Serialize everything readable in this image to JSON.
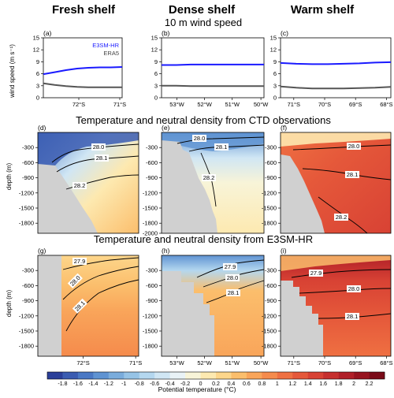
{
  "column_headers": [
    "Fresh shelf",
    "Dense shelf",
    "Warm shelf"
  ],
  "row_titles": [
    "10 m wind speed",
    "Temperature and neutral density from CTD observations",
    "Temperature and neutral density from E3SM-HR"
  ],
  "panel_labels": [
    "(a)",
    "(b)",
    "(c)",
    "(d)",
    "(e)",
    "(f)",
    "(g)",
    "(h)",
    "(i)"
  ],
  "ylabels": {
    "wind": "wind speed (m s⁻¹)",
    "depth": "depth (m)"
  },
  "colorbar": {
    "label": "Potential temperature (°C)",
    "ticks": [
      "-1.8",
      "-1.6",
      "-1.4",
      "-1.2",
      "-1",
      "-0.8",
      "-0.6",
      "-0.4",
      "-0.2",
      "0",
      "0.2",
      "0.4",
      "0.6",
      "0.8",
      "1",
      "1.2",
      "1.4",
      "1.6",
      "1.8",
      "2",
      "2.2"
    ],
    "colors": [
      "#2b3f99",
      "#3b5cb1",
      "#4a78c4",
      "#5f93d2",
      "#7aacdc",
      "#96c3e6",
      "#b4d7ef",
      "#d0e6f4",
      "#e9f2f6",
      "#f8f4d8",
      "#fde9b0",
      "#fdd68b",
      "#fbbe6c",
      "#f9a55a",
      "#f58b4c",
      "#ef7042",
      "#e5583a",
      "#d84234",
      "#c62f2e",
      "#b01f28",
      "#97131f",
      "#7a0a18"
    ]
  },
  "chart_data": [
    {
      "panel": "(a)",
      "type": "line",
      "x_ticks": [
        "72°S",
        "71°S"
      ],
      "ylim": [
        0,
        15
      ],
      "y_ticks": [
        "0",
        "3",
        "6",
        "9",
        "12",
        "15"
      ],
      "legend": {
        "position": "top-right"
      },
      "series": [
        {
          "name": "E3SM-HR",
          "color": "#1a1aff",
          "values": [
            5.9,
            6.4,
            6.9,
            7.3,
            7.5,
            7.6,
            7.6,
            7.7
          ]
        },
        {
          "name": "ERA5",
          "color": "#555555",
          "values": [
            3.6,
            3.2,
            2.9,
            2.7,
            2.6,
            2.6,
            2.6,
            2.6
          ]
        }
      ]
    },
    {
      "panel": "(b)",
      "type": "line",
      "x_ticks": [
        "53°W",
        "52°W",
        "51°W",
        "50°W"
      ],
      "ylim": [
        0,
        15
      ],
      "series": [
        {
          "color": "#1a1aff",
          "values": [
            8.2,
            8.2,
            8.3,
            8.3,
            8.3,
            8.3,
            8.3,
            8.3
          ]
        },
        {
          "color": "#555555",
          "values": [
            3.0,
            3.0,
            2.9,
            2.9,
            2.9,
            2.9,
            2.9,
            2.9
          ]
        }
      ]
    },
    {
      "panel": "(c)",
      "type": "line",
      "x_ticks": [
        "71°S",
        "70°S",
        "69°S",
        "68°S"
      ],
      "ylim": [
        0,
        15
      ],
      "series": [
        {
          "color": "#1a1aff",
          "values": [
            8.7,
            8.5,
            8.4,
            8.4,
            8.5,
            8.6,
            8.8,
            8.9
          ]
        },
        {
          "color": "#555555",
          "values": [
            2.8,
            2.5,
            2.3,
            2.3,
            2.3,
            2.4,
            2.5,
            2.7
          ]
        }
      ]
    },
    {
      "panel": "(d)",
      "type": "heatmap",
      "ylim": [
        -2000,
        0
      ],
      "y_ticks": [
        "-300",
        "-600",
        "-900",
        "-1200",
        "-1500",
        "-1800"
      ],
      "contour_labels": [
        "28.0",
        "28.1",
        "28.2"
      ]
    },
    {
      "panel": "(e)",
      "type": "heatmap",
      "ylim": [
        -2000,
        0
      ],
      "y_ticks": [
        "-300",
        "-600",
        "-900",
        "-1200",
        "-1500",
        "-1800",
        "-2000"
      ],
      "contour_labels": [
        "28.0",
        "28.1",
        "28.2"
      ]
    },
    {
      "panel": "(f)",
      "type": "heatmap",
      "ylim": [
        -2000,
        0
      ],
      "y_ticks": [
        "-300",
        "-600",
        "-900",
        "-1200",
        "-1500",
        "-1800"
      ],
      "contour_labels": [
        "28.0",
        "28.1",
        "28.2"
      ]
    },
    {
      "panel": "(g)",
      "type": "heatmap",
      "ylim": [
        -2000,
        0
      ],
      "x_ticks": [
        "72°S",
        "71°S"
      ],
      "y_ticks": [
        "-300",
        "-600",
        "-900",
        "-1200",
        "-1500",
        "-1800"
      ],
      "contour_labels": [
        "27.9",
        "28.0",
        "28.1"
      ]
    },
    {
      "panel": "(h)",
      "type": "heatmap",
      "ylim": [
        -2000,
        0
      ],
      "x_ticks": [
        "53°W",
        "52°W",
        "51°W",
        "50°W"
      ],
      "y_ticks": [
        "-300",
        "-600",
        "-900",
        "-1200",
        "-1500",
        "-1800"
      ],
      "contour_labels": [
        "27.9",
        "28.0",
        "28.1"
      ]
    },
    {
      "panel": "(i)",
      "type": "heatmap",
      "ylim": [
        -2000,
        0
      ],
      "x_ticks": [
        "71°S",
        "70°S",
        "69°S",
        "68°S"
      ],
      "y_ticks": [
        "-300",
        "-600",
        "-900",
        "-1200",
        "-1500",
        "-1800"
      ],
      "contour_labels": [
        "27.9",
        "28.0",
        "28.1"
      ]
    }
  ]
}
